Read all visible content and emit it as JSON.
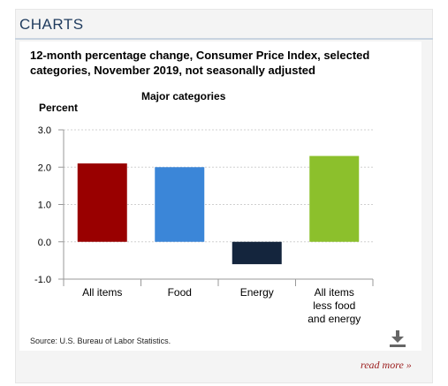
{
  "widget": {
    "heading": "CHARTS",
    "source": "Source: U.S. Bureau of Labor Statistics.",
    "read_more": "read more »",
    "download_icon": "download-icon"
  },
  "chart_data": {
    "type": "bar",
    "title": "12-month percentage change, Consumer Price Index, selected categories, November 2019, not seasonally adjusted",
    "subtitle": "Major categories",
    "ylabel": "Percent",
    "xlabel": "",
    "ylim": [
      -1.0,
      3.0
    ],
    "yticks": [
      "3.0",
      "2.0",
      "1.0",
      "0.0",
      "-1.0"
    ],
    "grid": true,
    "legend": "none",
    "categories": [
      [
        "All items"
      ],
      [
        "Food"
      ],
      [
        "Energy"
      ],
      [
        "All items",
        "less food",
        "and energy"
      ]
    ],
    "values": [
      2.1,
      2.0,
      -0.6,
      2.3
    ],
    "colors": [
      "#990000",
      "#3b86d8",
      "#14253d",
      "#8cc02c"
    ]
  }
}
